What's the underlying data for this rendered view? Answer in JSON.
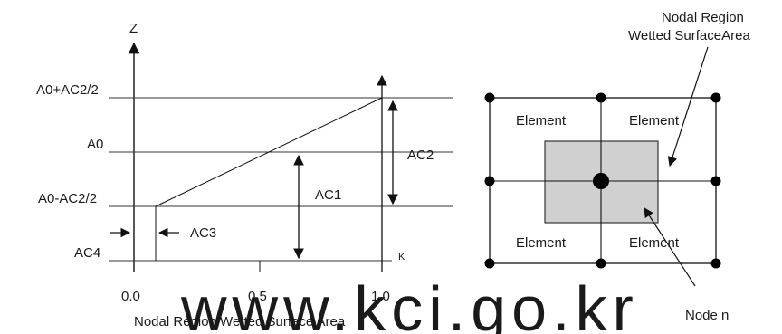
{
  "left_diagram": {
    "z_axis_label": "Z",
    "levels": {
      "top": "A0+AC2/2",
      "mid": "A0",
      "low": "A0-AC2/2",
      "bottom": "AC4"
    },
    "dims": {
      "ac1": "AC1",
      "ac2": "AC2",
      "ac3": "AC3"
    },
    "x_ticks": [
      "0.0",
      "0.5",
      "1.0"
    ],
    "x_end_label": "K",
    "x_axis_title": "Nodal Region Wetted Surface Area"
  },
  "right_diagram": {
    "element_labels": [
      "Element",
      "Element",
      "Element",
      "Element"
    ],
    "region_label_line1": "Nodal Region",
    "region_label_line2": "Wetted SurfaceArea",
    "node_label": "Node n"
  },
  "watermark": "www.kci.go.kr"
}
